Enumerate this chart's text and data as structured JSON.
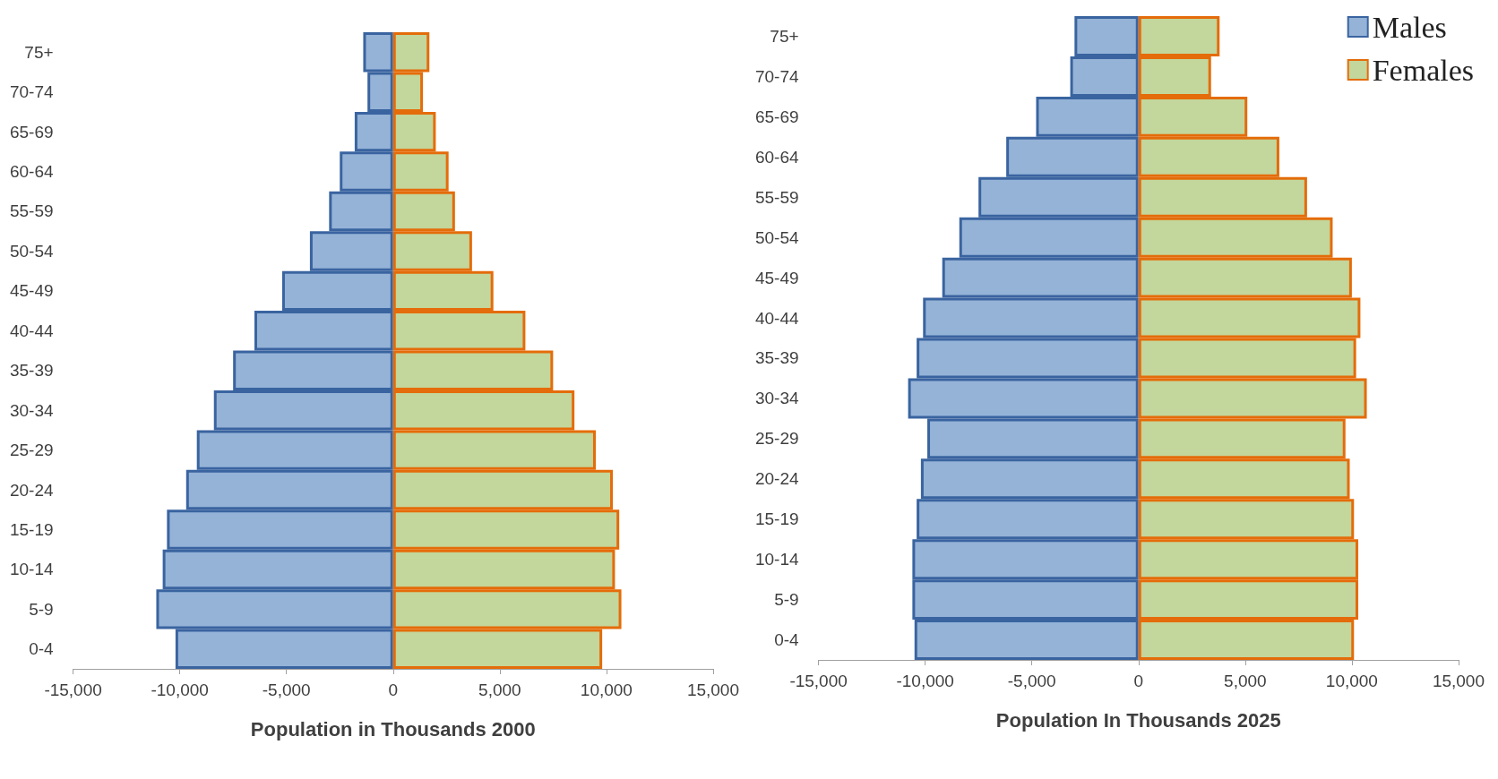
{
  "chart_data": [
    {
      "type": "bar",
      "orientation": "horizontal",
      "xlabel": "Population in Thousands 2000",
      "categories": [
        "75+",
        "70-74",
        "65-69",
        "60-64",
        "55-59",
        "50-54",
        "45-49",
        "40-44",
        "35-39",
        "30-34",
        "25-29",
        "20-24",
        "15-19",
        "10-14",
        "5-9",
        "0-4"
      ],
      "series": [
        {
          "color": "#95b3d7",
          "values": [
            -1400,
            -1200,
            -1800,
            -2500,
            -3000,
            -3900,
            -5200,
            -6500,
            -7500,
            -8400,
            -9200,
            -9700,
            -10600,
            -10800,
            -11100,
            -10200
          ]
        },
        {
          "color": "#c3d69b",
          "values": [
            1700,
            1400,
            2000,
            2600,
            2900,
            3700,
            4700,
            6200,
            7500,
            8500,
            9500,
            10300,
            10600,
            10400,
            10700,
            9800
          ]
        }
      ],
      "xlim": [
        -15000,
        15000
      ],
      "xticks": [
        {
          "value": -15000,
          "label": "-15,000"
        },
        {
          "value": -10000,
          "label": "-10,000"
        },
        {
          "value": -5000,
          "label": "-5,000"
        },
        0,
        {
          "value": 5000,
          "label": "5,000"
        },
        {
          "value": 10000,
          "label": "10,000"
        },
        {
          "value": 15000,
          "label": "15,000"
        }
      ],
      "grid": false,
      "legend": false,
      "stacked": true
    },
    {
      "type": "bar",
      "orientation": "horizontal",
      "xlabel": "Population In Thousands 2025",
      "categories": [
        "75+",
        "70-74",
        "65-69",
        "60-64",
        "55-59",
        "50-54",
        "45-49",
        "40-44",
        "35-39",
        "30-34",
        "25-29",
        "20-24",
        "15-19",
        "10-14",
        "5-9",
        "0-4"
      ],
      "series": [
        {
          "name": "Males",
          "color": "#95b3d7",
          "values": [
            -3000,
            -3200,
            -4800,
            -6200,
            -7500,
            -8400,
            -9200,
            -10100,
            -10400,
            -10800,
            -9900,
            -10200,
            -10400,
            -10600,
            -10600,
            -10500
          ]
        },
        {
          "name": "Females",
          "color": "#c3d69b",
          "values": [
            3800,
            3400,
            5100,
            6600,
            7900,
            9100,
            10000,
            10400,
            10200,
            10700,
            9700,
            9900,
            10100,
            10300,
            10300,
            10100
          ]
        }
      ],
      "xlim": [
        -15000,
        15000
      ],
      "xticks": [
        {
          "value": -15000,
          "label": "-15,000"
        },
        {
          "value": -10000,
          "label": "-10,000"
        },
        {
          "value": -5000,
          "label": "-5,000"
        },
        0,
        {
          "value": 5000,
          "label": "5,000"
        },
        {
          "value": 10000,
          "label": "10,000"
        },
        {
          "value": 15000,
          "label": "15,000"
        }
      ],
      "grid": false,
      "legend": "top right",
      "stacked": true
    }
  ]
}
